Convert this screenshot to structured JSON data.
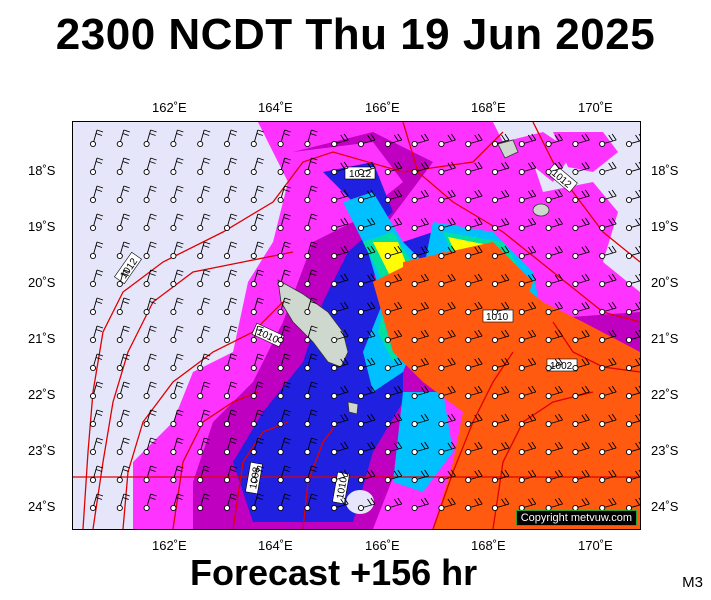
{
  "header": {
    "title": "2300 NCDT Thu 19 Jun 2025"
  },
  "footer": {
    "forecast": "Forecast +156 hr",
    "model": "M3"
  },
  "map": {
    "lon_ticks_top": [
      "162˚E",
      "164˚E",
      "166˚E",
      "168˚E",
      "170˚E"
    ],
    "lon_ticks_bottom": [
      "162˚E",
      "164˚E",
      "166˚E",
      "168˚E",
      "170˚E"
    ],
    "lat_ticks_left": [
      "18˚S",
      "19˚S",
      "20˚S",
      "21˚S",
      "22˚S",
      "23˚S",
      "24˚S"
    ],
    "lat_ticks_right": [
      "18˚S",
      "19˚S",
      "20˚S",
      "21˚S",
      "22˚S",
      "23˚S",
      "24˚S"
    ],
    "isobar_labels": [
      "1012",
      "1012",
      "1012",
      "1010",
      "1010",
      "1008",
      "1010",
      "1002"
    ],
    "copyright": "Copyright metvuw.com",
    "colors": {
      "calm": "#e6e6fb",
      "light": "#ff33ff",
      "moderate": "#c000c0",
      "fresh": "#2020e0",
      "strong": "#00c0ff",
      "gale": "#00e0a0",
      "severe": "#ffff00",
      "storm": "#ff5a10",
      "isobar": "#e00000",
      "land": "#cfd8cf"
    }
  }
}
